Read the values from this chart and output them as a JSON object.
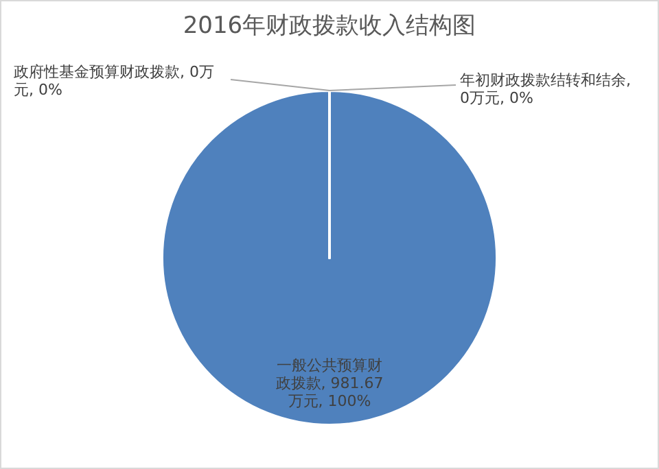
{
  "chart_data": {
    "type": "pie",
    "title": "2016年财政拨款收入结构图",
    "categories": [
      "一般公共预算财政拨款",
      "政府性基金预算财政拨款",
      "年初财政拨款结转和结余"
    ],
    "values": [
      981.67,
      0,
      0
    ],
    "colors": [
      "#4f81bd",
      "#c0504d",
      "#9bbb59"
    ],
    "value_labels": [
      ", 981.67万元, 100%",
      ", 0万元, 0%",
      ", 0万元, 0%"
    ]
  }
}
